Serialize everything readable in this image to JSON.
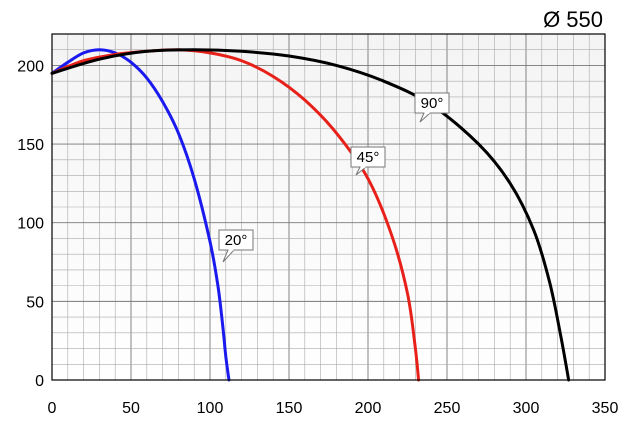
{
  "chart_data": {
    "type": "line",
    "title": "Ø 550",
    "xlabel": "",
    "ylabel": "",
    "xlim": [
      0,
      350
    ],
    "ylim": [
      0,
      220
    ],
    "x_ticks": [
      0,
      50,
      100,
      150,
      200,
      250,
      300,
      350
    ],
    "y_ticks": [
      0,
      50,
      100,
      150,
      200
    ],
    "x_minor_step": 10,
    "y_minor_step": 10,
    "grid": true,
    "series": [
      {
        "name": "20°",
        "color": "#1a1aee",
        "points": [
          [
            0,
            195
          ],
          [
            10,
            202
          ],
          [
            20,
            208
          ],
          [
            30,
            210
          ],
          [
            40,
            208
          ],
          [
            50,
            202
          ],
          [
            60,
            192
          ],
          [
            70,
            177
          ],
          [
            80,
            157
          ],
          [
            90,
            128
          ],
          [
            100,
            88
          ],
          [
            105,
            60
          ],
          [
            108,
            35
          ],
          [
            110,
            15
          ],
          [
            112,
            0
          ]
        ]
      },
      {
        "name": "45°",
        "color": "#e8201a",
        "points": [
          [
            0,
            195
          ],
          [
            20,
            203
          ],
          [
            40,
            207
          ],
          [
            60,
            209
          ],
          [
            80,
            210
          ],
          [
            100,
            208
          ],
          [
            120,
            203
          ],
          [
            140,
            193
          ],
          [
            160,
            178
          ],
          [
            180,
            157
          ],
          [
            200,
            128
          ],
          [
            215,
            92
          ],
          [
            225,
            55
          ],
          [
            230,
            20
          ],
          [
            232,
            0
          ]
        ]
      },
      {
        "name": "90°",
        "color": "#000000",
        "points": [
          [
            0,
            195
          ],
          [
            30,
            204
          ],
          [
            60,
            209
          ],
          [
            90,
            210
          ],
          [
            120,
            209
          ],
          [
            150,
            206
          ],
          [
            180,
            200
          ],
          [
            210,
            190
          ],
          [
            240,
            175
          ],
          [
            270,
            150
          ],
          [
            290,
            125
          ],
          [
            305,
            95
          ],
          [
            315,
            62
          ],
          [
            322,
            28
          ],
          [
            327,
            0
          ]
        ]
      }
    ],
    "annotations": [
      {
        "text": "20°",
        "series": "20°"
      },
      {
        "text": "45°",
        "series": "45°"
      },
      {
        "text": "90°",
        "series": "90°"
      }
    ]
  }
}
